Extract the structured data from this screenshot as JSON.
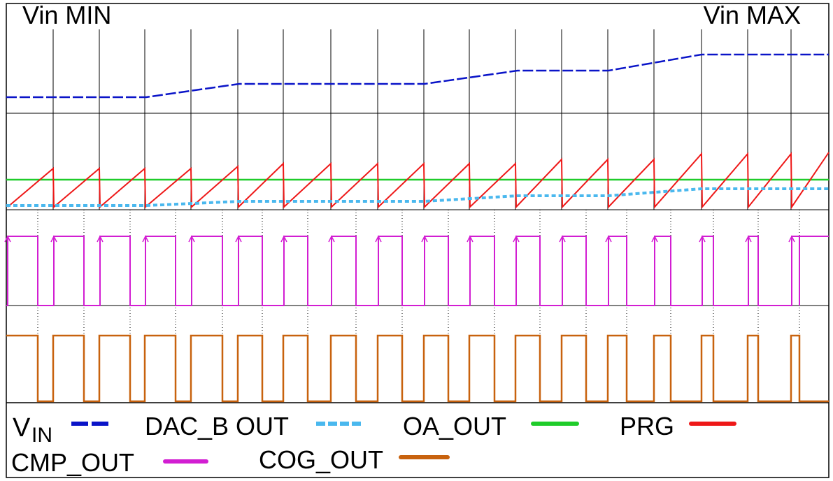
{
  "header": {
    "left_label": "Vin MIN",
    "right_label": "Vin MAX"
  },
  "legend": {
    "items": [
      {
        "key": "vin",
        "label": "V",
        "subscript": "IN",
        "color": "#0a14c8",
        "style": "dashed"
      },
      {
        "key": "dac_b",
        "label": "DAC_B OUT",
        "color": "#4ab8ee",
        "style": "dotted"
      },
      {
        "key": "oa_out",
        "label": "OA_OUT",
        "color": "#1fcc2a",
        "style": "solid"
      },
      {
        "key": "prg",
        "label": "PRG",
        "color": "#ee1818",
        "style": "solid"
      },
      {
        "key": "cmp_out",
        "label": "CMP_OUT",
        "color": "#d21ed2",
        "style": "solid"
      },
      {
        "key": "cog_out",
        "label": "COG_OUT",
        "color": "#c8620e",
        "style": "solid"
      }
    ]
  },
  "colors": {
    "grid": "#000000",
    "frame": "#000000",
    "guide": "#000000"
  }
}
